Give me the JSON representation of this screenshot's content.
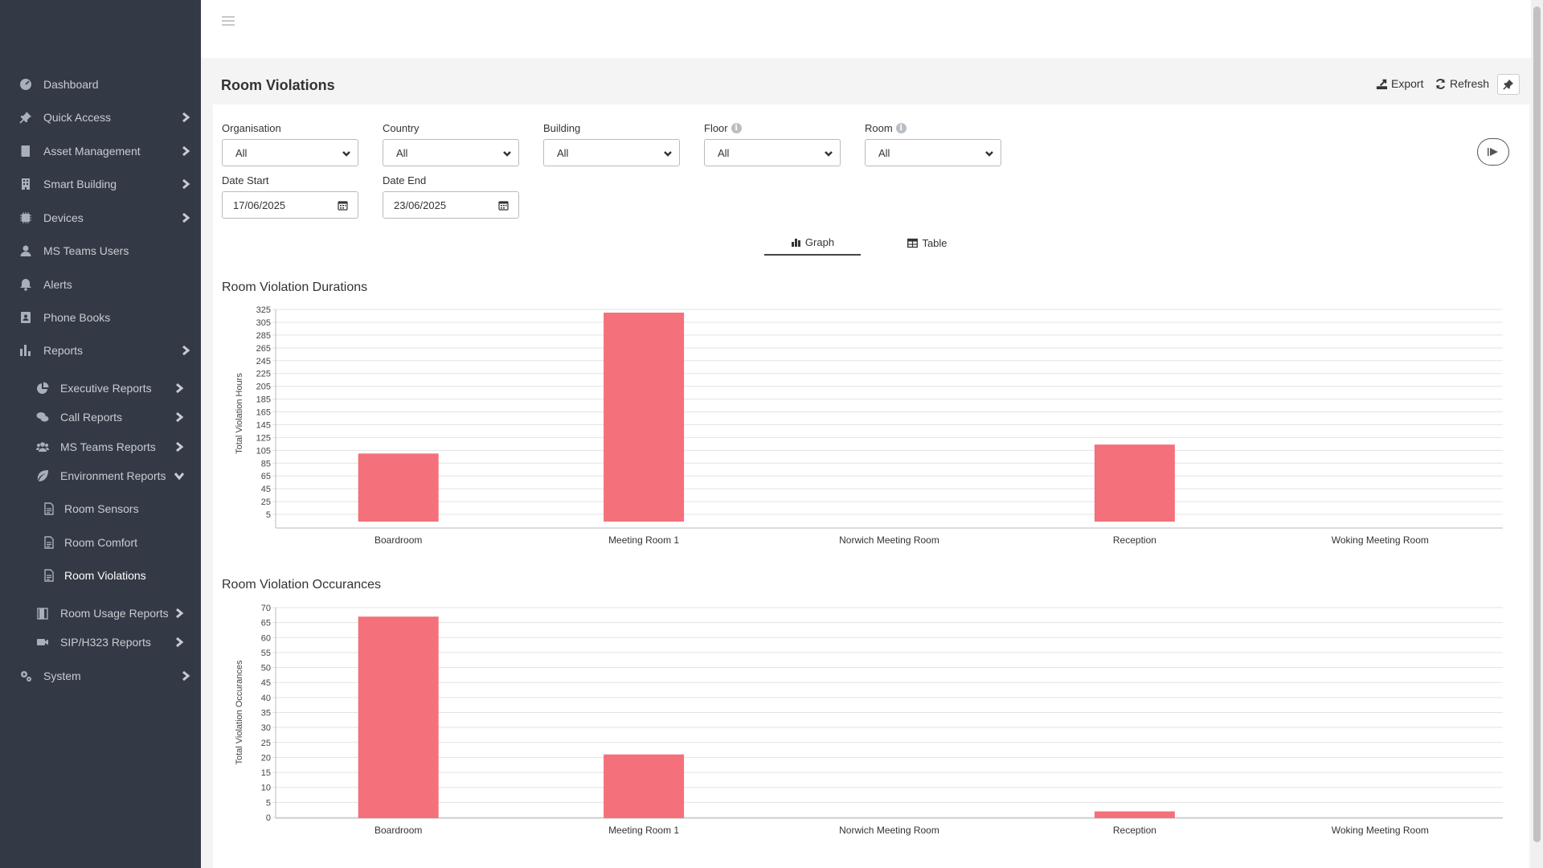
{
  "sidebar": {
    "items": [
      {
        "label": "Dashboard",
        "icon": "dashboard-icon"
      },
      {
        "label": "Quick Access",
        "icon": "pin-icon"
      },
      {
        "label": "Asset Management",
        "icon": "book-icon"
      },
      {
        "label": "Smart Building",
        "icon": "building-icon"
      },
      {
        "label": "Devices",
        "icon": "chip-icon"
      },
      {
        "label": "MS Teams Users",
        "icon": "user-icon"
      },
      {
        "label": "Alerts",
        "icon": "bell-icon"
      },
      {
        "label": "Phone Books",
        "icon": "address-book-icon"
      },
      {
        "label": "Reports",
        "icon": "bar-chart-icon"
      },
      {
        "label": "Executive Reports",
        "icon": "pie-chart-icon"
      },
      {
        "label": "Call Reports",
        "icon": "comments-icon"
      },
      {
        "label": "MS Teams Reports",
        "icon": "users-icon"
      },
      {
        "label": "Environment Reports",
        "icon": "leaf-icon"
      },
      {
        "label": "Room Sensors",
        "icon": "file-icon"
      },
      {
        "label": "Room Comfort",
        "icon": "file-icon"
      },
      {
        "label": "Room Violations",
        "icon": "file-icon"
      },
      {
        "label": "Room Usage Reports",
        "icon": "door-icon"
      },
      {
        "label": "SIP/H323 Reports",
        "icon": "video-icon"
      },
      {
        "label": "System",
        "icon": "cogs-icon"
      }
    ]
  },
  "header": {
    "title": "Room Violations",
    "export_label": "Export",
    "refresh_label": "Refresh"
  },
  "filters": {
    "organisation": {
      "label": "Organisation",
      "value": "All"
    },
    "country": {
      "label": "Country",
      "value": "All"
    },
    "building": {
      "label": "Building",
      "value": "All"
    },
    "floor": {
      "label": "Floor",
      "value": "All"
    },
    "room": {
      "label": "Room",
      "value": "All"
    },
    "date_start": {
      "label": "Date Start",
      "value": "17/06/2025"
    },
    "date_end": {
      "label": "Date End",
      "value": "23/06/2025"
    }
  },
  "tabs": {
    "graph_label": "Graph",
    "table_label": "Table",
    "active": "graph"
  },
  "colors": {
    "bar": "#f4707b",
    "sidebar_bg": "#343a45"
  },
  "chart_data": [
    {
      "type": "bar",
      "title": "Room Violation Durations",
      "ylabel": "Total Violation Hours",
      "xlabel": "",
      "categories": [
        "Boardroom",
        "Meeting Room 1",
        "Norwich Meeting Room",
        "Reception",
        "Woking Meeting Room"
      ],
      "values": [
        100,
        320,
        0,
        114,
        0
      ],
      "ylim": [
        0,
        325
      ],
      "yticks": [
        5,
        25,
        45,
        65,
        85,
        105,
        125,
        145,
        165,
        185,
        205,
        225,
        245,
        265,
        285,
        305,
        325
      ],
      "grid": true
    },
    {
      "type": "bar",
      "title": "Room Violation Occurances",
      "ylabel": "Total Violation Occurances",
      "xlabel": "",
      "categories": [
        "Boardroom",
        "Meeting Room 1",
        "Norwich Meeting Room",
        "Reception",
        "Woking Meeting Room"
      ],
      "values": [
        67,
        21,
        0,
        2,
        0
      ],
      "ylim": [
        0,
        70
      ],
      "yticks": [
        0,
        5,
        10,
        15,
        20,
        25,
        30,
        35,
        40,
        45,
        50,
        55,
        60,
        65,
        70
      ],
      "grid": true
    }
  ]
}
